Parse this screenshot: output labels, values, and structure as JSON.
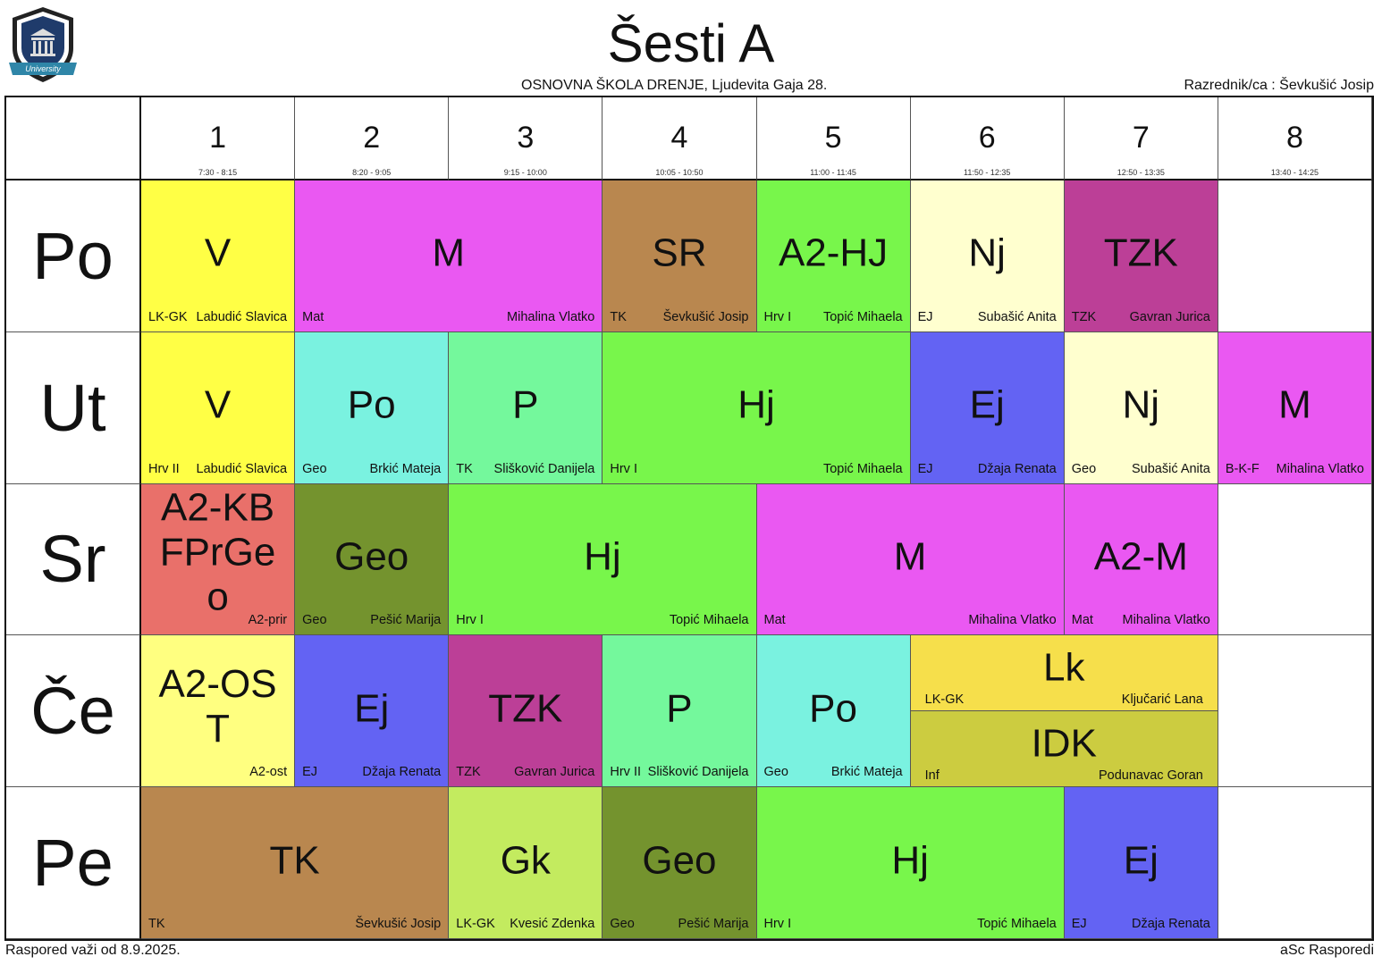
{
  "header": {
    "title": "Šesti A",
    "school": "OSNOVNA ŠKOLA  DRENJE, Ljudevita Gaja 28.",
    "class_teacher": "Razrednik/ca : Ševkušić Josip",
    "logo_text": "University"
  },
  "periods": [
    {
      "num": "1",
      "time": "7:30 - 8:15"
    },
    {
      "num": "2",
      "time": "8:20 - 9:05"
    },
    {
      "num": "3",
      "time": "9:15 - 10:00"
    },
    {
      "num": "4",
      "time": "10:05 - 10:50"
    },
    {
      "num": "5",
      "time": "11:00 - 11:45"
    },
    {
      "num": "6",
      "time": "11:50 - 12:35"
    },
    {
      "num": "7",
      "time": "12:50 - 13:35"
    },
    {
      "num": "8",
      "time": "13:40 - 14:25"
    }
  ],
  "days": [
    "Po",
    "Ut",
    "Sr",
    "Če",
    "Pe"
  ],
  "lessons": [
    {
      "day": 0,
      "period": 1,
      "span": 1,
      "subject": "V",
      "left": "LK-GK",
      "right": "Labudić Slavica",
      "color": "#ffff45"
    },
    {
      "day": 0,
      "period": 2,
      "span": 2,
      "subject": "M",
      "left": "Mat",
      "right": "Mihalina Vlatko",
      "color": "#ea58f2"
    },
    {
      "day": 0,
      "period": 4,
      "span": 1,
      "subject": "SR",
      "left": "TK",
      "right": "Ševkušić Josip",
      "color": "#b9874f"
    },
    {
      "day": 0,
      "period": 5,
      "span": 1,
      "subject": "A2-HJ",
      "left": "Hrv I",
      "right": "Topić Mihaela",
      "color": "#78f64b"
    },
    {
      "day": 0,
      "period": 6,
      "span": 1,
      "subject": "Nj",
      "left": "EJ",
      "right": "Subašić Anita",
      "color": "#ffffcf"
    },
    {
      "day": 0,
      "period": 7,
      "span": 1,
      "subject": "TZK",
      "left": "TZK",
      "right": "Gavran Jurica",
      "color": "#bc3f97"
    },
    {
      "day": 1,
      "period": 1,
      "span": 1,
      "subject": "V",
      "left": "Hrv II",
      "right": "Labudić Slavica",
      "color": "#ffff45"
    },
    {
      "day": 1,
      "period": 2,
      "span": 1,
      "subject": "Po",
      "left": "Geo",
      "right": "Brkić Mateja",
      "color": "#7af2e0"
    },
    {
      "day": 1,
      "period": 3,
      "span": 1,
      "subject": "P",
      "left": "TK",
      "right": "Slišković Danijela",
      "color": "#74f89c"
    },
    {
      "day": 1,
      "period": 4,
      "span": 2,
      "subject": "Hj",
      "left": "Hrv I",
      "right": "Topić Mihaela",
      "color": "#78f64b"
    },
    {
      "day": 1,
      "period": 6,
      "span": 1,
      "subject": "Ej",
      "left": "EJ",
      "right": "Džaja Renata",
      "color": "#6363f3"
    },
    {
      "day": 1,
      "period": 7,
      "span": 1,
      "subject": "Nj",
      "left": "Geo",
      "right": "Subašić Anita",
      "color": "#ffffcf"
    },
    {
      "day": 1,
      "period": 8,
      "span": 1,
      "subject": "M",
      "left": "B-K-F",
      "right": "Mihalina Vlatko",
      "color": "#ea58f2"
    },
    {
      "day": 2,
      "period": 1,
      "span": 1,
      "subject": "A2-KBFPrGeo",
      "left": "",
      "right": "A2-prir",
      "color": "#e9706a"
    },
    {
      "day": 2,
      "period": 2,
      "span": 1,
      "subject": "Geo",
      "left": "Geo",
      "right": "Pešić Marija",
      "color": "#74932e"
    },
    {
      "day": 2,
      "period": 3,
      "span": 2,
      "subject": "Hj",
      "left": "Hrv I",
      "right": "Topić Mihaela",
      "color": "#78f64b"
    },
    {
      "day": 2,
      "period": 5,
      "span": 2,
      "subject": "M",
      "left": "Mat",
      "right": "Mihalina Vlatko",
      "color": "#ea58f2"
    },
    {
      "day": 2,
      "period": 7,
      "span": 1,
      "subject": "A2-M",
      "left": "Mat",
      "right": "Mihalina Vlatko",
      "color": "#ea58f2"
    },
    {
      "day": 3,
      "period": 1,
      "span": 1,
      "subject": "A2-OST",
      "left": "",
      "right": "A2-ost",
      "color": "#ffff80"
    },
    {
      "day": 3,
      "period": 2,
      "span": 1,
      "subject": "Ej",
      "left": "EJ",
      "right": "Džaja Renata",
      "color": "#6363f3"
    },
    {
      "day": 3,
      "period": 3,
      "span": 1,
      "subject": "TZK",
      "left": "TZK",
      "right": "Gavran Jurica",
      "color": "#bc3f97"
    },
    {
      "day": 3,
      "period": 4,
      "span": 1,
      "subject": "P",
      "left": "Hrv II",
      "right": "Slišković Danijela",
      "color": "#74f89c"
    },
    {
      "day": 3,
      "period": 5,
      "span": 1,
      "subject": "Po",
      "left": "Geo",
      "right": "Brkić Mateja",
      "color": "#7af2e0"
    },
    {
      "day": 3,
      "period": 6,
      "span": 2,
      "subject": "Lk",
      "left": "LK-GK",
      "right": "Ključarić Lana",
      "color": "#f6df4b",
      "half": "top"
    },
    {
      "day": 3,
      "period": 6,
      "span": 2,
      "subject": "IDK",
      "left": "Inf",
      "right": "Podunavac Goran",
      "color": "#cccc40",
      "half": "bottom"
    },
    {
      "day": 4,
      "period": 1,
      "span": 2,
      "subject": "TK",
      "left": "TK",
      "right": "Ševkušić Josip",
      "color": "#b9874f"
    },
    {
      "day": 4,
      "period": 3,
      "span": 1,
      "subject": "Gk",
      "left": "LK-GK",
      "right": "Kvesić Zdenka",
      "color": "#c3eb5f"
    },
    {
      "day": 4,
      "period": 4,
      "span": 1,
      "subject": "Geo",
      "left": "Geo",
      "right": "Pešić Marija",
      "color": "#74932e"
    },
    {
      "day": 4,
      "period": 5,
      "span": 2,
      "subject": "Hj",
      "left": "Hrv I",
      "right": "Topić Mihaela",
      "color": "#78f64b"
    },
    {
      "day": 4,
      "period": 7,
      "span": 1,
      "subject": "Ej",
      "left": "EJ",
      "right": "Džaja Renata",
      "color": "#6363f3"
    }
  ],
  "footer": {
    "valid_from": "Raspored važi od 8.9.2025.",
    "generator": "aSc Rasporedi"
  }
}
